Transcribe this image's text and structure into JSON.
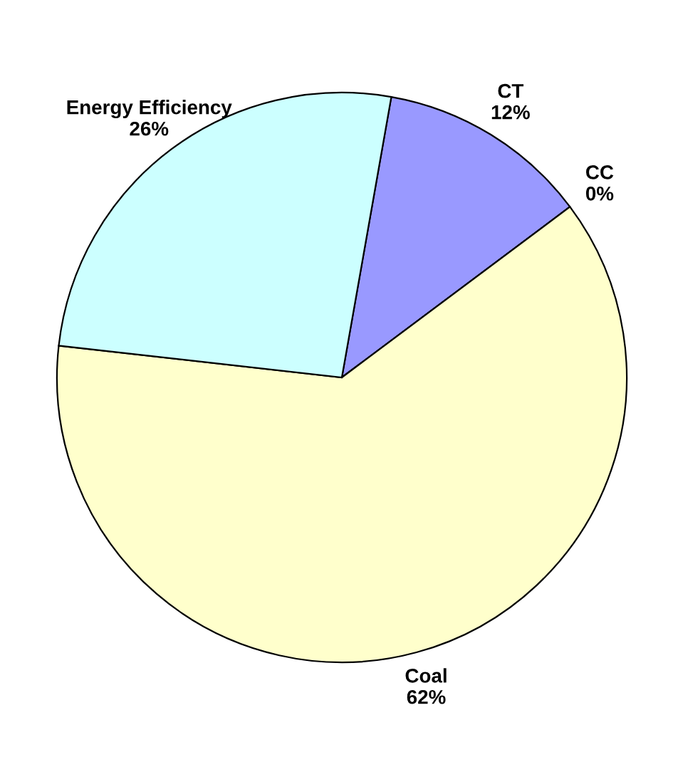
{
  "chart_data": {
    "type": "pie",
    "categories": [
      "CT",
      "CC",
      "Coal",
      "Energy Efficiency"
    ],
    "values": [
      12,
      0,
      62,
      26
    ],
    "value_labels": [
      "12%",
      "0%",
      "62%",
      "26%"
    ],
    "colors": [
      "#9999ff",
      "#993366",
      "#ffffcc",
      "#ccffff"
    ],
    "legend": false
  }
}
